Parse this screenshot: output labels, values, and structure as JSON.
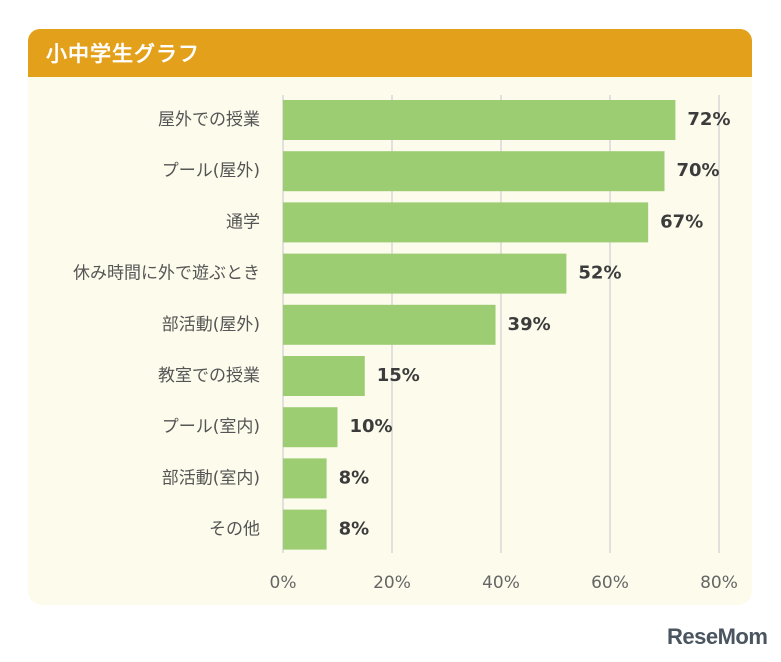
{
  "header": {
    "title": "小中学生グラフ"
  },
  "chart_data": {
    "type": "bar",
    "orientation": "horizontal",
    "title": "小中学生グラフ",
    "categories": [
      "屋外での授業",
      "プール(屋外)",
      "通学",
      "休み時間に外で遊ぶとき",
      "部活動(屋外)",
      "教室での授業",
      "プール(室内)",
      "部活動(室内)",
      "その他"
    ],
    "values": [
      72,
      70,
      67,
      52,
      39,
      15,
      10,
      8,
      8
    ],
    "value_labels": [
      "72%",
      "70%",
      "67%",
      "52%",
      "39%",
      "15%",
      "10%",
      "8%",
      "8%"
    ],
    "xlim": [
      0,
      80
    ],
    "xticks": [
      0,
      20,
      40,
      60,
      80
    ],
    "xtick_labels": [
      "0%",
      "20%",
      "40%",
      "60%",
      "80%"
    ],
    "xlabel": "",
    "ylabel": "",
    "grid": "vertical",
    "bar_color": "#9ccd73",
    "grid_color": "#d8d8d8"
  },
  "brand": {
    "logo_text": "ReseMom"
  }
}
